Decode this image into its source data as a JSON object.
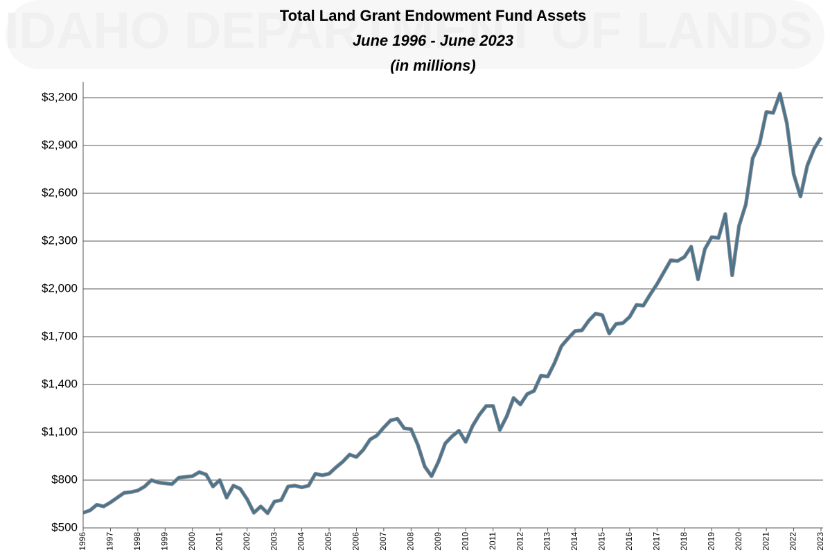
{
  "chart_data": {
    "type": "line",
    "watermark": "IDAHO DEPARTMENT OF LANDS",
    "title": "Total Land Grant Endowment Fund Assets",
    "subtitle": [
      "June 1996 - June 2023",
      "(in millions)"
    ],
    "categories": [
      "1996",
      null,
      null,
      null,
      "1997",
      null,
      null,
      null,
      "1998",
      null,
      null,
      null,
      "1999",
      null,
      null,
      null,
      "2000",
      null,
      null,
      null,
      "2001",
      null,
      null,
      null,
      "2002",
      null,
      null,
      null,
      "2003",
      null,
      null,
      null,
      "2004",
      null,
      null,
      null,
      "2005",
      null,
      null,
      null,
      "2006",
      null,
      null,
      null,
      "2007",
      null,
      null,
      null,
      "2008",
      null,
      null,
      null,
      "2009",
      null,
      null,
      null,
      "2010",
      null,
      null,
      null,
      "2011",
      null,
      null,
      null,
      "2012",
      null,
      null,
      null,
      "2013",
      null,
      null,
      null,
      "2014",
      null,
      null,
      null,
      "2015",
      null,
      null,
      null,
      "2016",
      null,
      null,
      null,
      "2017",
      null,
      null,
      null,
      "2018",
      null,
      null,
      null,
      "2019",
      null,
      null,
      null,
      "2020",
      null,
      null,
      null,
      "2021",
      null,
      null,
      null,
      "2022",
      null,
      null,
      null,
      "2023"
    ],
    "series": [
      {
        "color": "#4a7590",
        "values": [
          595,
          610,
          645,
          635,
          660,
          690,
          720,
          725,
          735,
          760,
          800,
          785,
          780,
          775,
          815,
          820,
          825,
          850,
          835,
          760,
          800,
          690,
          765,
          745,
          680,
          595,
          635,
          592,
          665,
          675,
          760,
          765,
          755,
          765,
          840,
          830,
          840,
          880,
          915,
          960,
          945,
          990,
          1055,
          1080,
          1130,
          1175,
          1185,
          1125,
          1120,
          1020,
          885,
          825,
          915,
          1030,
          1075,
          1110,
          1040,
          1140,
          1210,
          1265,
          1265,
          1115,
          1200,
          1315,
          1275,
          1340,
          1360,
          1455,
          1450,
          1535,
          1640,
          1690,
          1735,
          1740,
          1800,
          1845,
          1835,
          1720,
          1780,
          1785,
          1825,
          1900,
          1895,
          1965,
          2030,
          2105,
          2180,
          2175,
          2200,
          2265,
          2060,
          2250,
          2325,
          2320,
          2470,
          2085,
          2395,
          2530,
          2820,
          2910,
          3110,
          3105,
          3225,
          3040,
          2720,
          2580,
          2775,
          2880,
          2950
        ]
      }
    ],
    "ylim": [
      500,
      3300
    ],
    "yticks": [
      {
        "value": 500,
        "label": "$500"
      },
      {
        "value": 800,
        "label": "$800"
      },
      {
        "value": 1100,
        "label": "$1,100"
      },
      {
        "value": 1400,
        "label": "$1,400"
      },
      {
        "value": 1700,
        "label": "$1,700"
      },
      {
        "value": 2000,
        "label": "$2,000"
      },
      {
        "value": 2300,
        "label": "$2,300"
      },
      {
        "value": 2600,
        "label": "$2,600"
      },
      {
        "value": 2900,
        "label": "$2,900"
      },
      {
        "value": 3200,
        "label": "$3,200"
      }
    ],
    "grid": true
  }
}
